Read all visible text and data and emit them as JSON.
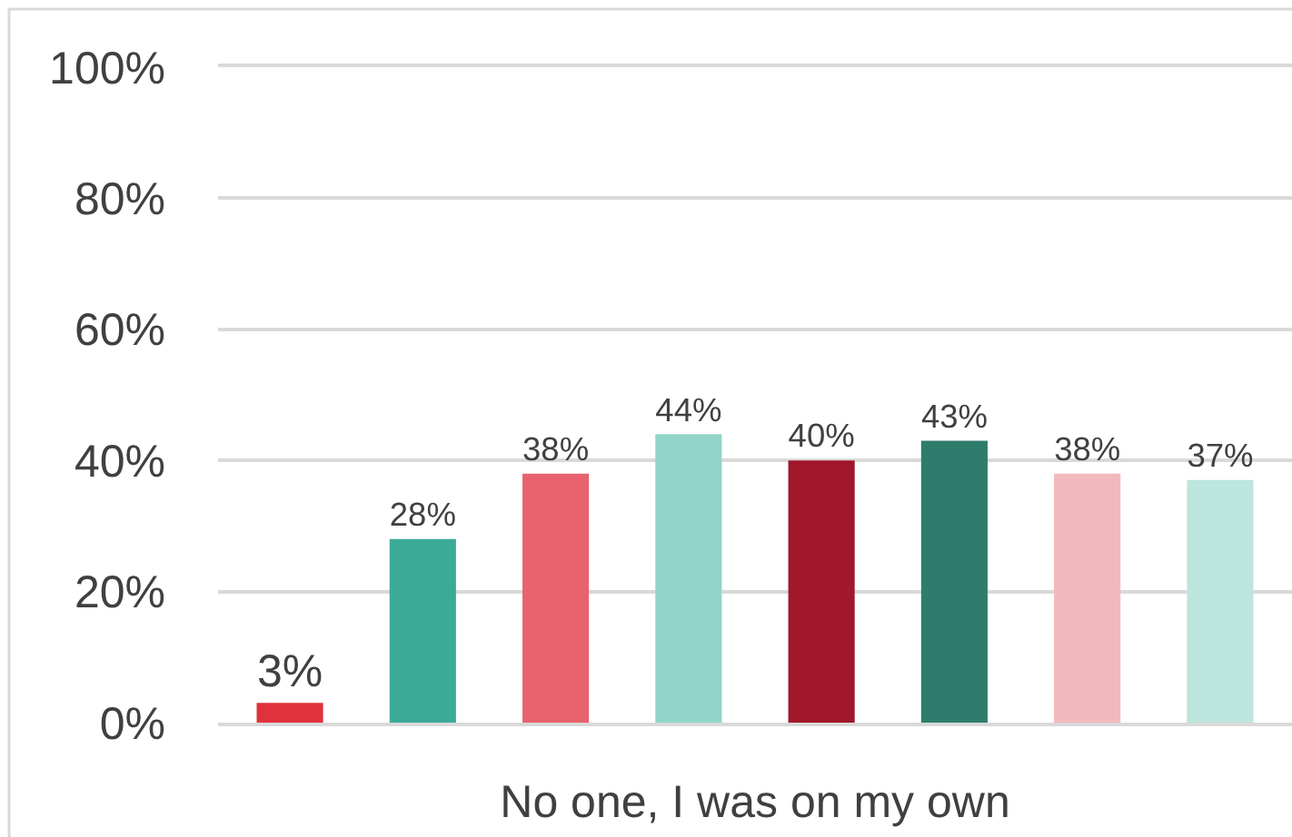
{
  "chart_data": {
    "type": "bar",
    "categories": [
      "No one, I was on my own"
    ],
    "series": [
      {
        "color": "#e0323c",
        "values": [
          3
        ],
        "value_labels": [
          "3%"
        ]
      },
      {
        "color": "#3bab98",
        "values": [
          28
        ],
        "value_labels": [
          "28%"
        ]
      },
      {
        "color": "#e8636e",
        "values": [
          38
        ],
        "value_labels": [
          "38%"
        ]
      },
      {
        "color": "#92d5c8",
        "values": [
          44
        ],
        "value_labels": [
          "44%"
        ]
      },
      {
        "color": "#a0182a",
        "values": [
          40
        ],
        "value_labels": [
          "40%"
        ]
      },
      {
        "color": "#2e7d6c",
        "values": [
          43
        ],
        "value_labels": [
          "43%"
        ]
      },
      {
        "color": "#f3b8bc",
        "values": [
          38
        ],
        "value_labels": [
          "38%"
        ]
      },
      {
        "color": "#bce5de",
        "values": [
          37
        ],
        "value_labels": [
          "37%"
        ]
      }
    ],
    "ylim": [
      0,
      100
    ],
    "yticks": [
      {
        "value": 0,
        "label": "0%"
      },
      {
        "value": 20,
        "label": "20%"
      },
      {
        "value": 40,
        "label": "40%"
      },
      {
        "value": 60,
        "label": "60%"
      },
      {
        "value": 80,
        "label": "80%"
      },
      {
        "value": 100,
        "label": "100%"
      }
    ],
    "grid": "y"
  }
}
